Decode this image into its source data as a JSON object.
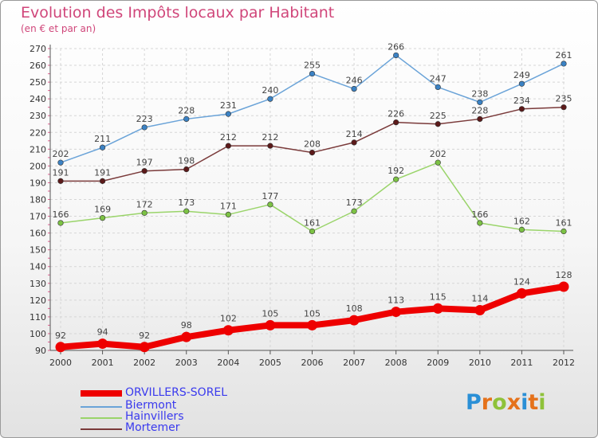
{
  "title": "Evolution des Impôts locaux par Habitant",
  "subtitle": "(en € et par an)",
  "logo": {
    "text": "Proxiti",
    "colors": [
      "#2a8fd6",
      "#e5721b",
      "#8fc23a",
      "#e5721b",
      "#2a8fd6",
      "#e5721b",
      "#8fc23a"
    ]
  },
  "chart_data": {
    "type": "line",
    "title": "Evolution des Impôts locaux par Habitant",
    "subtitle": "(en € et par an)",
    "x": [
      "2000",
      "2001",
      "2002",
      "2003",
      "2004",
      "2005",
      "2006",
      "2007",
      "2008",
      "2009",
      "2010",
      "2011",
      "2012"
    ],
    "ylim": [
      90,
      270
    ],
    "yticks": [
      90,
      100,
      110,
      120,
      130,
      140,
      150,
      160,
      170,
      180,
      190,
      200,
      210,
      220,
      230,
      240,
      250,
      260,
      270
    ],
    "grid": true,
    "legend_position": "bottom-left",
    "series": [
      {
        "name": "ORVILLERS-SOREL",
        "color": "#ee0000",
        "marker": "#ee0000",
        "width": 8,
        "values": [
          92,
          94,
          92,
          98,
          102,
          105,
          105,
          108,
          113,
          115,
          114,
          124,
          128
        ]
      },
      {
        "name": "Biermont",
        "color": "#6aa3d8",
        "marker": "#3b82c4",
        "width": 1.5,
        "values": [
          202,
          211,
          223,
          228,
          231,
          240,
          255,
          246,
          266,
          247,
          238,
          249,
          261
        ]
      },
      {
        "name": "Hainvillers",
        "color": "#9ad46a",
        "marker": "#7cc244",
        "width": 1.5,
        "values": [
          166,
          169,
          172,
          173,
          171,
          177,
          161,
          173,
          192,
          202,
          166,
          162,
          161
        ]
      },
      {
        "name": "Mortemer",
        "color": "#7a3a3a",
        "marker": "#5c1a1a",
        "width": 1.5,
        "values": [
          191,
          191,
          197,
          198,
          212,
          212,
          208,
          214,
          226,
          225,
          228,
          234,
          235
        ]
      }
    ]
  }
}
